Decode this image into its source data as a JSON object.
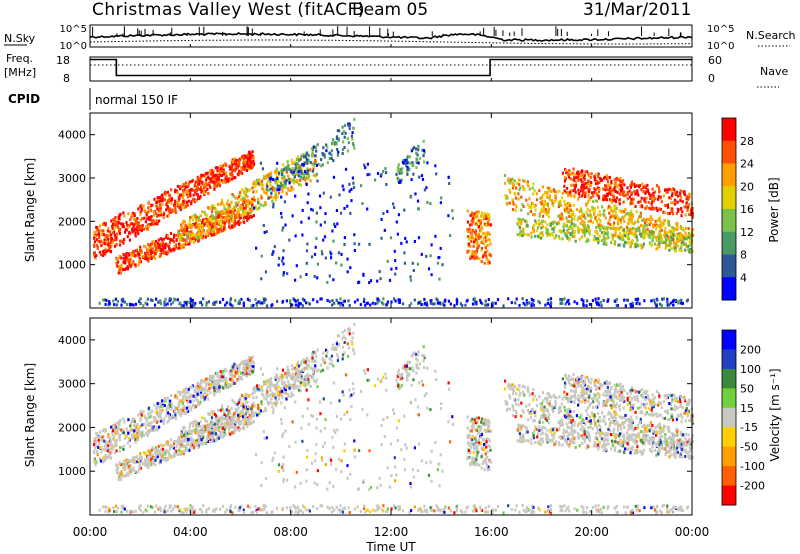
{
  "header": {
    "site": "Christmas Valley West (fitACF)",
    "beam": "Beam 05",
    "date": "31/Mar/2011"
  },
  "noise_panel": {
    "left_label": "N.Sky",
    "left_ticks": [
      "10^5",
      "10^0"
    ],
    "right_label": "N.Search",
    "right_ticks": [
      "10^5",
      "10^0"
    ]
  },
  "freq_panel": {
    "left_label_line1": "Freq.",
    "left_label_line2": "[MHz]",
    "left_ticks": [
      "18",
      "8"
    ],
    "right_label": "Nave",
    "right_ticks": [
      "60",
      "0"
    ]
  },
  "cpid_panel": {
    "label": "CPID",
    "text": "normal 150 IF"
  },
  "chart_data": [
    {
      "type": "heatmap",
      "name": "power",
      "ylabel": "Slant Range [km]",
      "ylim": [
        0,
        4500
      ],
      "yticks": [
        "4000",
        "3000",
        "2000",
        "1000"
      ],
      "xlim": [
        "00:00",
        "24:00"
      ],
      "colorbar_label": "Power [dB]",
      "colorbar_ticks": [
        "28",
        "24",
        "20",
        "16",
        "12",
        "8",
        "4"
      ],
      "colorscale": [
        "#0000ff",
        "#2d5a96",
        "#4a9a66",
        "#7ac24a",
        "#e0d000",
        "#ffa000",
        "#ff5000",
        "#ff0000"
      ]
    },
    {
      "type": "heatmap",
      "name": "velocity",
      "ylabel": "Slant Range [km]",
      "ylim": [
        0,
        4500
      ],
      "yticks": [
        "4000",
        "3000",
        "2000",
        "1000"
      ],
      "xlim": [
        "00:00",
        "24:00"
      ],
      "colorbar_label": "Velocity [m s⁻¹]",
      "colorbar_ticks": [
        "200",
        "100",
        "50",
        "15",
        "-15",
        "-50",
        "-100",
        "-200"
      ],
      "colorscale": [
        "#ff0000",
        "#ff6000",
        "#ffa000",
        "#ffd000",
        "#c8c8c0",
        "#70d040",
        "#3a8a3a",
        "#2040c0",
        "#0000ff"
      ]
    }
  ],
  "x_axis": {
    "ticks": [
      "00:00",
      "04:00",
      "08:00",
      "12:00",
      "16:00",
      "20:00",
      "00:00"
    ],
    "label": "Time UT"
  }
}
